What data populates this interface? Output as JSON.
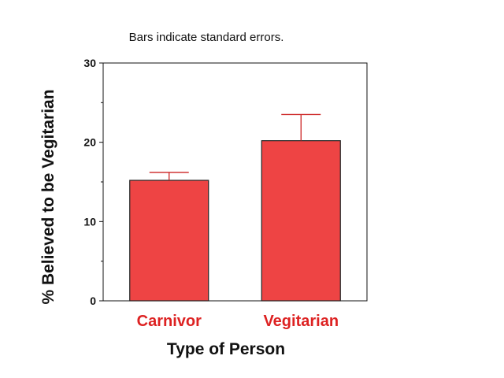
{
  "chart_data": {
    "type": "bar",
    "title": "",
    "subtitle": "Bars indicate standard errors.",
    "categories": [
      "Carnivor",
      "Vegitarian"
    ],
    "values": [
      15.2,
      20.2
    ],
    "error_upper": [
      16.2,
      23.5
    ],
    "xlabel": "Type of Person",
    "ylabel": "% Believed to be Vegitarian",
    "ylim": [
      0,
      30
    ],
    "yticks": [
      "0",
      "10",
      "20",
      "30"
    ],
    "grid": false,
    "legend": "none",
    "colors": {
      "bar_fill": "#ee4444",
      "bar_stroke": "#222222",
      "error_bar": "#cc2222",
      "category_label": "#dd2222"
    }
  }
}
